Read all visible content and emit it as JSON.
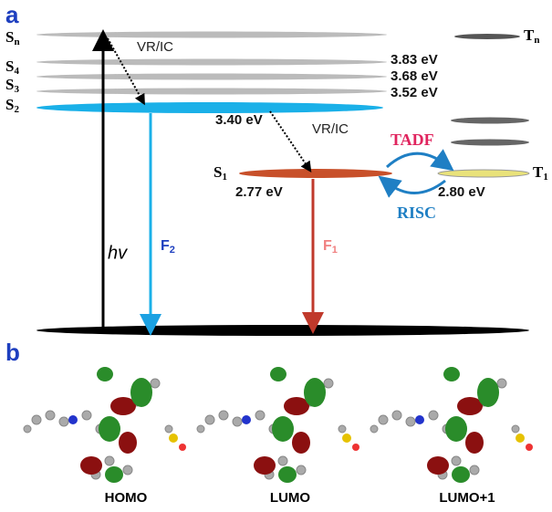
{
  "panel_a": {
    "label": "a",
    "levels": [
      {
        "symbol": "S",
        "sub": "n"
      },
      {
        "symbol": "S",
        "sub": "4",
        "energy": "3.83 eV"
      },
      {
        "symbol": "S",
        "sub": "3",
        "energy": "3.68 eV"
      },
      {
        "symbol": "S",
        "sub": "2",
        "energy": "3.52 eV"
      },
      {
        "symbol": "S",
        "sub": "1",
        "energy": "2.77 eV"
      },
      {
        "symbol": "T",
        "sub": "n"
      },
      {
        "symbol": "T",
        "sub": "1",
        "energy": "2.80 eV"
      }
    ],
    "annotations": {
      "vric_upper": "VR/IC",
      "vric_lower": "VR/IC",
      "s2_gap": "3.40 eV",
      "tadf": "TADF",
      "risc": "RISC",
      "excitation": "hv"
    },
    "emissions": [
      {
        "symbol": "F",
        "sub": "2"
      },
      {
        "symbol": "F",
        "sub": "1"
      }
    ]
  },
  "panel_b": {
    "label": "b",
    "orbitals": [
      "HOMO",
      "LUMO",
      "LUMO+1"
    ]
  }
}
